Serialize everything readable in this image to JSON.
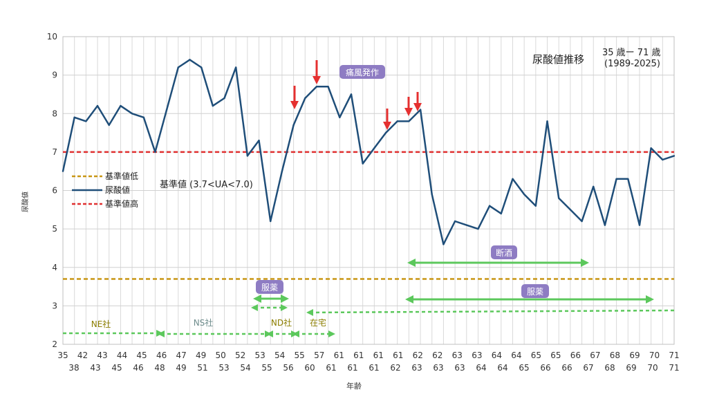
{
  "chart_data": {
    "type": "line",
    "title": "尿酸値推移",
    "subtitle_lines": [
      "35 歳ー 71 歳",
      "(1989-2025)"
    ],
    "xlabel": "年齢",
    "ylabel": "尿酸値",
    "ylim": [
      2,
      10
    ],
    "yticks": [
      "2",
      "3",
      "4",
      "5",
      "6",
      "7",
      "8",
      "9",
      "10"
    ],
    "grid": true,
    "x_ticks_top": [
      "35",
      "42",
      "43",
      "44",
      "45",
      "46",
      "47",
      "49",
      "50",
      "52",
      "53",
      "54",
      "55",
      "57",
      "61",
      "61",
      "61",
      "61",
      "62",
      "62",
      "63",
      "63",
      "64",
      "64",
      "65",
      "65",
      "66",
      "67",
      "68",
      "69",
      "70",
      "71"
    ],
    "x_ticks_bottom": [
      "38",
      "43",
      "45",
      "46",
      "48",
      "49",
      "51",
      "53",
      "54",
      "55",
      "56",
      "60",
      "61",
      "61",
      "61",
      "62",
      "63",
      "63",
      "63",
      "64",
      "64",
      "65",
      "66",
      "66",
      "67",
      "68",
      "69",
      "70",
      "71"
    ],
    "series": [
      {
        "name": "尿酸値",
        "color": "#1f4e79",
        "values": [
          6.5,
          7.9,
          7.8,
          8.2,
          7.7,
          8.2,
          8.0,
          7.9,
          7.0,
          8.1,
          9.2,
          9.4,
          9.2,
          8.2,
          8.4,
          9.2,
          6.9,
          7.3,
          5.2,
          6.5,
          7.7,
          8.4,
          8.7,
          8.7,
          7.9,
          8.5,
          6.7,
          7.1,
          7.5,
          7.8,
          7.8,
          8.1,
          5.9,
          4.6,
          5.2,
          5.1,
          5.0,
          5.6,
          5.4,
          6.3,
          5.9,
          5.6,
          7.8,
          5.8,
          5.5,
          5.2,
          6.1,
          5.1,
          6.3,
          6.3,
          5.1,
          7.1,
          6.8,
          6.9
        ]
      },
      {
        "name": "基準値高",
        "color": "#e03030",
        "values": [
          7.0
        ]
      },
      {
        "name": "基準値低",
        "color": "#c89614",
        "values": [
          3.7
        ]
      }
    ],
    "legend": [
      "基準値低",
      "尿酸値",
      "基準値高"
    ],
    "legend_position": "left",
    "reference_label": "基準値 (3.7<UA<7.0)",
    "annotations": {
      "gout": "痛風発作",
      "abstain": "断酒",
      "medicine_short": "服薬",
      "medicine_long": "服薬",
      "ne": "NE社",
      "ns": "NS社",
      "nd": "ND社",
      "home": "在宅"
    },
    "arrow_colors": {
      "red": "#e53030",
      "green": "#5cc85c",
      "ann_box": "#8e7cc3",
      "ann_text": "#ffffff",
      "company_text": "#8b7d00",
      "ns_text": "#6e8c8c"
    }
  }
}
